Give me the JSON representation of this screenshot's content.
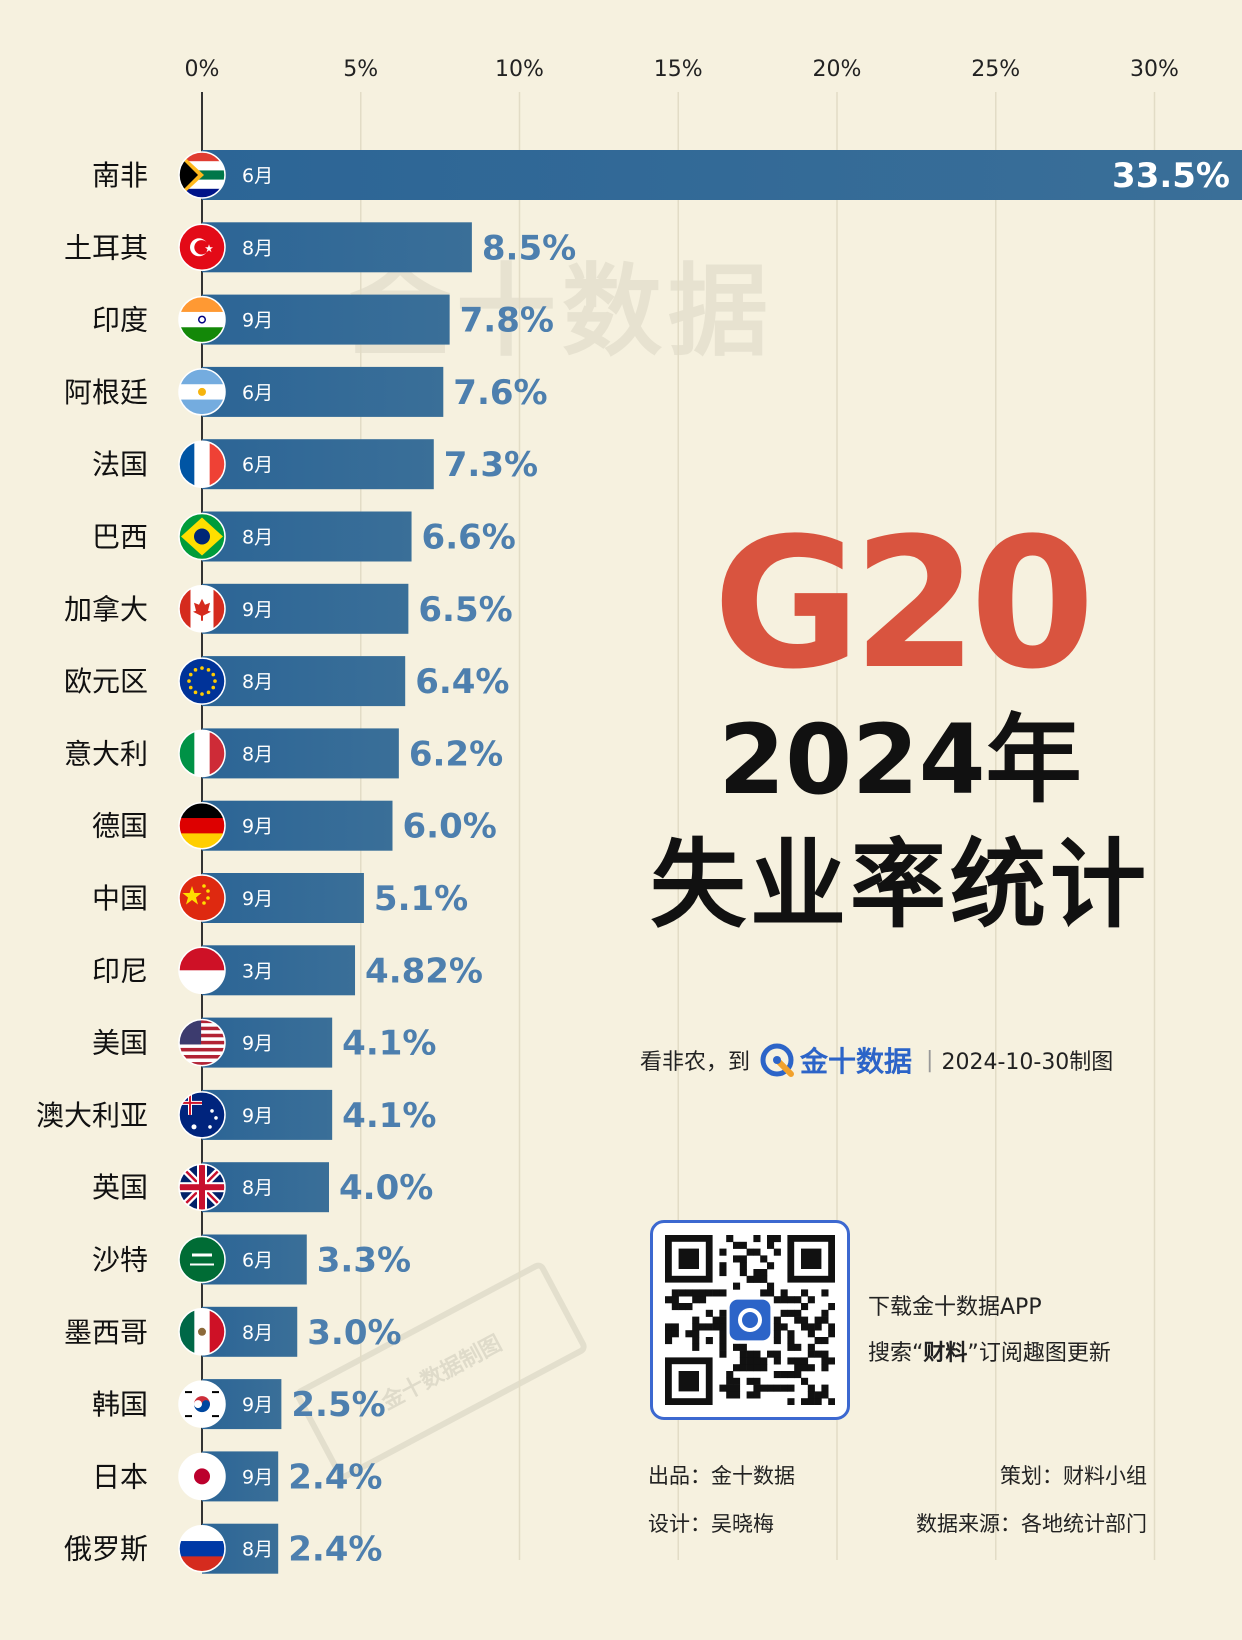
{
  "chart_data": {
    "type": "bar",
    "orientation": "horizontal",
    "xlim": [
      0,
      30
    ],
    "x_ticks": [
      "0%",
      "5%",
      "10%",
      "15%",
      "20%",
      "25%",
      "30%"
    ],
    "grid": true,
    "categories": [
      "南非",
      "土耳其",
      "印度",
      "阿根廷",
      "法国",
      "巴西",
      "加拿大",
      "欧元区",
      "意大利",
      "德国",
      "中国",
      "印尼",
      "美国",
      "澳大利亚",
      "英国",
      "沙特",
      "墨西哥",
      "韩国",
      "日本",
      "俄罗斯"
    ],
    "months": [
      "6月",
      "8月",
      "9月",
      "6月",
      "6月",
      "8月",
      "9月",
      "8月",
      "8月",
      "9月",
      "9月",
      "3月",
      "9月",
      "9月",
      "8月",
      "6月",
      "8月",
      "9月",
      "9月",
      "8月"
    ],
    "values": [
      33.5,
      8.5,
      7.8,
      7.6,
      7.3,
      6.6,
      6.5,
      6.4,
      6.2,
      6.0,
      5.1,
      4.82,
      4.1,
      4.1,
      4.0,
      3.3,
      3.0,
      2.5,
      2.4,
      2.4
    ],
    "value_labels": [
      "33.5%",
      "8.5%",
      "7.8%",
      "7.6%",
      "7.3%",
      "6.6%",
      "6.5%",
      "6.4%",
      "6.2%",
      "6.0%",
      "5.1%",
      "4.82%",
      "4.1%",
      "4.1%",
      "4.0%",
      "3.3%",
      "3.0%",
      "2.5%",
      "2.4%",
      "2.4%"
    ],
    "flag_icons": [
      "south-africa-flag-icon",
      "turkey-flag-icon",
      "india-flag-icon",
      "argentina-flag-icon",
      "france-flag-icon",
      "brazil-flag-icon",
      "canada-flag-icon",
      "eu-flag-icon",
      "italy-flag-icon",
      "germany-flag-icon",
      "china-flag-icon",
      "indonesia-flag-icon",
      "usa-flag-icon",
      "australia-flag-icon",
      "uk-flag-icon",
      "saudi-flag-icon",
      "mexico-flag-icon",
      "korea-flag-icon",
      "japan-flag-icon",
      "russia-flag-icon"
    ],
    "bar_color": "#2f6796",
    "value_color": "#4d7fae"
  },
  "title": {
    "g20": "G20",
    "year": "2024年",
    "main": "失业率统计"
  },
  "tagline": {
    "prefix": "看非农，到",
    "brand": "金十数据",
    "date": "2024-10-30制图"
  },
  "download": {
    "line1": "下载金十数据APP",
    "line2_pre": "搜索“",
    "line2_bold": "财料",
    "line2_post": "”订阅趣图更新"
  },
  "credits": {
    "producer": "出品：金十数据",
    "planner": "策划：财料小组",
    "designer": "设计：吴晓梅",
    "source": "数据来源：各地统计部门"
  },
  "watermark": "金十数据",
  "stamp": "金十数据制图",
  "colors": {
    "background": "#f6f1df",
    "accent": "#d9543f",
    "brand_blue": "#2c64c8"
  }
}
